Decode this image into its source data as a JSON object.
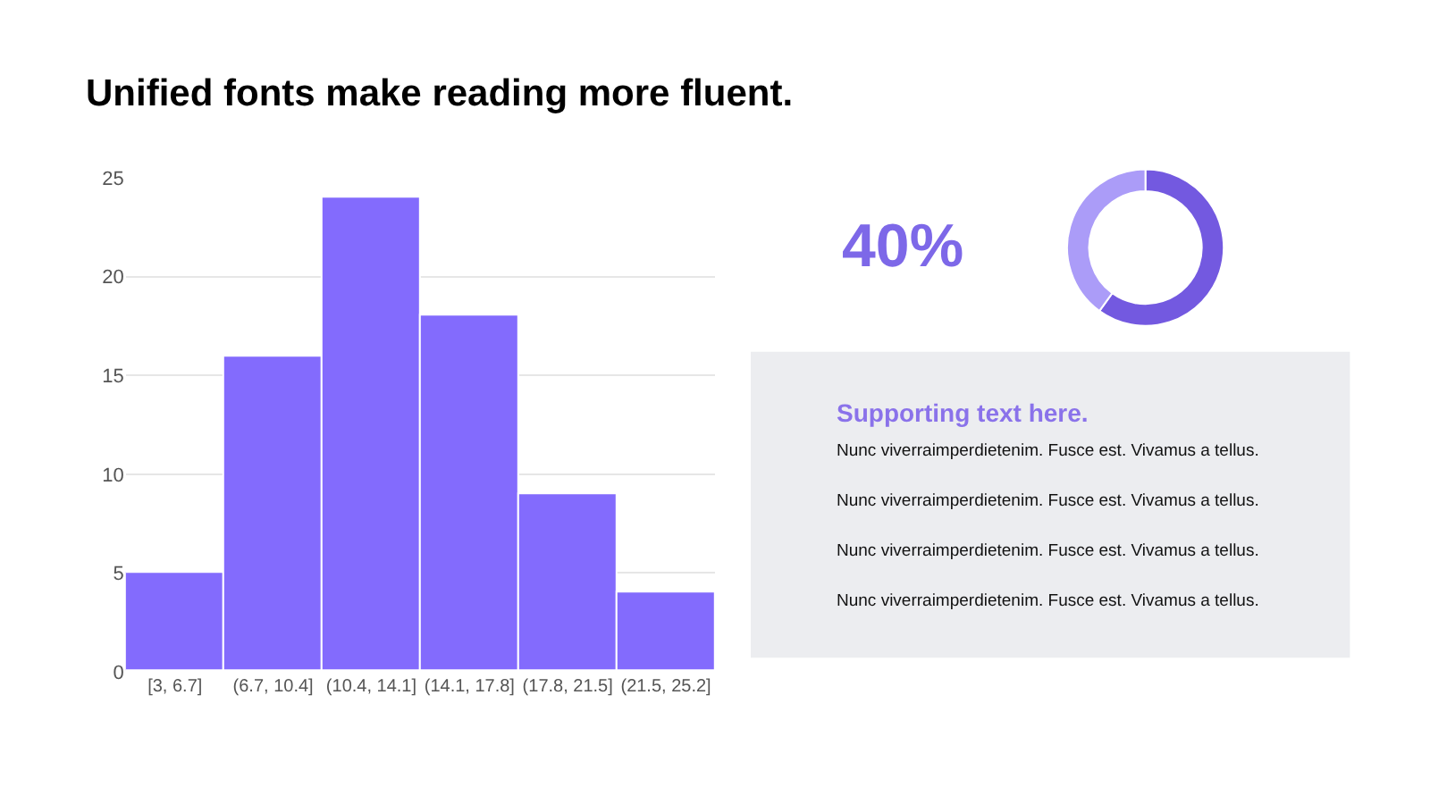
{
  "chart_data": [
    {
      "type": "bar",
      "title": "Unified fonts make reading more fluent.",
      "categories": [
        "[3, 6.7]",
        "(6.7, 10.4]",
        "(10.4, 14.1]",
        "(14.1, 17.8]",
        "(17.8, 21.5]",
        "(21.5, 25.2]"
      ],
      "values": [
        5,
        16,
        24,
        18,
        9,
        4
      ],
      "color": "#836bfd",
      "ylim": [
        0,
        25
      ],
      "yticks": [
        0,
        5,
        10,
        15,
        20,
        25
      ],
      "grid": "y"
    },
    {
      "type": "donut",
      "categories": [
        null,
        null
      ],
      "values": [
        60,
        40
      ],
      "colors": [
        "#7359e0",
        "#ab9cf8"
      ],
      "annotations": [
        "40%"
      ]
    },
    {
      "type": "other",
      "title": "Supporting text here.",
      "annotations": [
        "Nunc viverraimperdietenim. Fusce est. Vivamus a tellus.",
        "Nunc viverraimperdietenim. Fusce est. Vivamus a tellus.",
        "Nunc viverraimperdietenim. Fusce est. Vivamus a tellus.",
        "Nunc viverraimperdietenim. Fusce est. Vivamus a tellus."
      ]
    }
  ]
}
